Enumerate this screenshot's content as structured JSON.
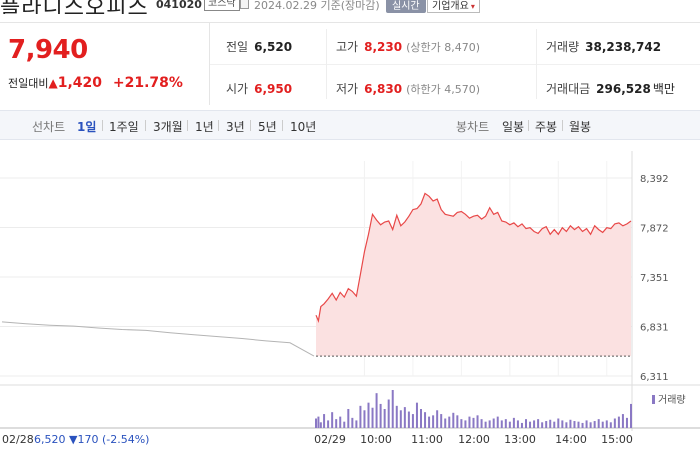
{
  "header": {
    "company_name": "플라니스오피스",
    "code": "041020",
    "market": "코스닥",
    "as_of": "2024.02.29 기준(장마감)",
    "live_button": "실시간",
    "company_info_button": "기업개요"
  },
  "summary": {
    "price": "7,940",
    "change_label": "전일대비",
    "change_arrow": "▲",
    "change_value": "1,420",
    "change_pct": "+21.78%",
    "prev_close_label": "전일",
    "prev_close": "6,520",
    "high_label": "고가",
    "high": "8,230",
    "upper_limit": "(상한가 8,470)",
    "volume_label": "거래량",
    "volume": "38,238,742",
    "open_label": "시가",
    "open": "6,950",
    "low_label": "저가",
    "low": "6,830",
    "lower_limit": "(하한가 4,570)",
    "value_label": "거래대금",
    "value": "296,528",
    "value_unit": "백만"
  },
  "tabs": {
    "line_chart_label": "선차트",
    "periods": [
      "1일",
      "1주일",
      "3개월",
      "1년",
      "3년",
      "5년",
      "10년"
    ],
    "active_period": "1일",
    "candle_chart_label": "봉차트",
    "candle_periods": [
      "일봉",
      "주봉",
      "월봉"
    ]
  },
  "chart_data": {
    "type": "line",
    "y_ticks": [
      "8,392",
      "7,872",
      "7,351",
      "6,831",
      "6,311"
    ],
    "ylim": [
      6311,
      8392
    ],
    "x_ticks": [
      "02/29",
      "10:00",
      "11:00",
      "12:00",
      "13:00",
      "14:00",
      "15:00"
    ],
    "prev_day_label": "02/28",
    "prev_day_summary": "6,520 ▼170 (-2.54%)",
    "volume_legend": "거래량",
    "colors": {
      "up": "#e84848",
      "fill": "#fbe1e1",
      "prev": "#b4b4b4",
      "volume": "#8a78c4",
      "grid": "#ececec"
    },
    "prev_day_series": {
      "x": [
        "09:00",
        "09:30",
        "10:00",
        "10:30",
        "11:00",
        "11:30",
        "12:00",
        "12:30",
        "13:00",
        "13:30",
        "14:00",
        "14:30",
        "15:00",
        "15:30"
      ],
      "values": [
        6880,
        6860,
        6845,
        6835,
        6815,
        6800,
        6790,
        6765,
        6745,
        6725,
        6705,
        6680,
        6660,
        6520
      ]
    },
    "series": [
      {
        "x": [
          "09:00",
          "09:03",
          "09:06",
          "09:10",
          "09:15",
          "09:20",
          "09:25",
          "09:30",
          "09:35",
          "09:40",
          "09:45",
          "09:50",
          "09:55",
          "10:00",
          "10:05",
          "10:10",
          "10:15",
          "10:20",
          "10:25",
          "10:30",
          "10:35",
          "10:40",
          "10:45",
          "10:50",
          "10:55",
          "11:00",
          "11:05",
          "11:10",
          "11:15",
          "11:20",
          "11:25",
          "11:30",
          "11:35",
          "11:40",
          "11:45",
          "11:50",
          "11:55",
          "12:00",
          "12:05",
          "12:10",
          "12:15",
          "12:20",
          "12:25",
          "12:30",
          "12:35",
          "12:40",
          "12:45",
          "12:50",
          "12:55",
          "13:00",
          "13:05",
          "13:10",
          "13:15",
          "13:20",
          "13:25",
          "13:30",
          "13:35",
          "13:40",
          "13:45",
          "13:50",
          "13:55",
          "14:00",
          "14:05",
          "14:10",
          "14:15",
          "14:20",
          "14:25",
          "14:30",
          "14:35",
          "14:40",
          "14:45",
          "14:50",
          "14:55",
          "15:00",
          "15:05",
          "15:10",
          "15:15",
          "15:20",
          "15:25",
          "15:30"
        ],
        "values": [
          6950,
          6890,
          7040,
          7070,
          7120,
          7180,
          7110,
          7190,
          7140,
          7230,
          7200,
          7150,
          7380,
          7620,
          7800,
          8010,
          7950,
          7900,
          7930,
          7940,
          7850,
          8000,
          7890,
          7930,
          7990,
          8060,
          8070,
          8120,
          8230,
          8200,
          8150,
          8170,
          8060,
          8010,
          8000,
          7990,
          8030,
          8040,
          8010,
          7970,
          7990,
          8000,
          7960,
          7990,
          8080,
          8010,
          8030,
          7940,
          7930,
          7900,
          7920,
          7880,
          7910,
          7860,
          7870,
          7830,
          7810,
          7860,
          7880,
          7800,
          7850,
          7800,
          7870,
          7830,
          7890,
          7850,
          7880,
          7830,
          7860,
          7800,
          7890,
          7850,
          7820,
          7870,
          7860,
          7910,
          7920,
          7890,
          7910,
          7940
        ]
      }
    ],
    "volume": [
      15,
      18,
      9,
      22,
      12,
      25,
      14,
      18,
      10,
      30,
      16,
      12,
      35,
      28,
      40,
      32,
      55,
      38,
      30,
      45,
      60,
      35,
      28,
      33,
      26,
      22,
      40,
      30,
      25,
      18,
      20,
      28,
      22,
      15,
      18,
      24,
      20,
      14,
      12,
      18,
      16,
      20,
      14,
      10,
      12,
      15,
      18,
      12,
      14,
      10,
      16,
      12,
      8,
      14,
      10,
      12,
      14,
      9,
      11,
      13,
      10,
      15,
      12,
      9,
      13,
      11,
      10,
      8,
      12,
      9,
      11,
      14,
      10,
      12,
      9,
      15,
      18,
      22,
      16,
      38
    ]
  }
}
